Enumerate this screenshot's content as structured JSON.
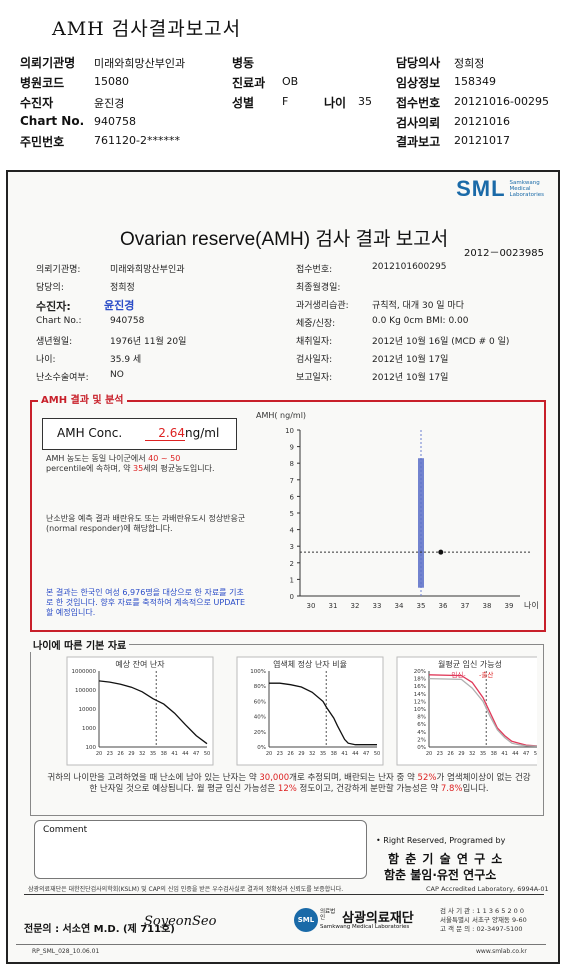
{
  "doc_title": "AMH 검사결과보고서",
  "header": {
    "labels": {
      "org": "의뢰기관명",
      "hosp_code": "병원코드",
      "patient": "수진자",
      "chart_no": "Chart No.",
      "rrn": "주민번호",
      "ward": "병동",
      "dept": "진료과",
      "sex": "성별",
      "age": "나이",
      "doctor": "담당의사",
      "clinical": "임상정보",
      "accession": "접수번호",
      "test_req": "검사의뢰",
      "result_rep": "결과보고"
    },
    "values": {
      "org": "미래와희망산부인과",
      "hosp_code": "15080",
      "patient": "윤진경",
      "chart_no": "940758",
      "rrn": "761120-2******",
      "ward": "",
      "dept": "OB",
      "sex": "F",
      "age": "35",
      "doctor": "정희정",
      "clinical": "158349",
      "accession": "20121016-00295",
      "test_req": "20121016",
      "result_rep": "20121017"
    }
  },
  "report": {
    "logo_text": "SML",
    "logo_sub": [
      "Samkwang",
      "Medical",
      "Laboratories"
    ],
    "title": "Ovarian reserve(AMH) 검사 결과 보고서",
    "doc_no": "2012－0023985",
    "left_info": [
      {
        "label": "의뢰기관명:",
        "value": "미래와희망산부인과"
      },
      {
        "label": "담당의:",
        "value": "정희정"
      },
      {
        "label": "수진자:",
        "value": "윤진경"
      },
      {
        "label": "Chart No.:",
        "value": "940758"
      },
      {
        "label": "생년월일:",
        "value": "1976년 11월 20일"
      },
      {
        "label": "나이:",
        "value": "35.9 세"
      },
      {
        "label": "난소수술여부:",
        "value": "NO"
      }
    ],
    "right_info": [
      {
        "label": "접수번호:",
        "value": "2012101600295"
      },
      {
        "label": "최종월경일:",
        "value": ""
      },
      {
        "label": "과거생리습관:",
        "value": "규칙적, 대개  30 일 마다"
      },
      {
        "label": "체중/신장:",
        "value": "0.0 Kg     0cm   BMI:     0.00"
      },
      {
        "label": "채취일자:",
        "value": "2012년 10월 16일  (MCD # 0 일)"
      },
      {
        "label": "검사일자:",
        "value": "2012년 10월 17일"
      },
      {
        "label": "보고일자:",
        "value": "2012년 10월 17일"
      }
    ],
    "amh_section_label": "AMH 결과 및 분석",
    "amh_conc_label": "AMH Conc.",
    "amh_value": "2.64",
    "amh_unit": "ng/ml",
    "note1": {
      "t1": "AMH 농도는 동일 나이군에서 ",
      "hl1": "40 ~ 50",
      "t2": "percentile에 속하며, 약 ",
      "hl2": "35",
      "t3": "세의 평균농도입니다."
    },
    "note2": "난소반응 예측 결과 배란유도 또는 과배란유도시 정상반응군 (normal responder)에 해당합니다.",
    "note3": "본 결과는 한국인 여성 6,976명을 대상으로 한 자료를 기초로 한 것입니다. 향후 자료를 축적하여 계속적으로 UPDATE할 예정입니다.",
    "age_section_label": "나이에 따른 기본 자료",
    "summary": {
      "t1": "귀하의 나이만을 고려하였을 때 난소에 남아 있는 난자는 약 ",
      "n1": "30,000",
      "t2": "개로 추정되며, 배란되는 난자 중 약 ",
      "n2": "52%",
      "t3": "가 염색체이상이 없는 건강한 난자일 것으로 예상됩니다. 월 평균 임신 가능성은 ",
      "n3": "12%",
      "t4": " 정도이고, 건강하게 분만할 가능성은 약 ",
      "n4": "7.8%",
      "t5": "입니다."
    },
    "comment_label": "Comment",
    "rights": "• Right Reserved, Programed by",
    "lab1": "함 춘 기 술 연 구 소",
    "lab2": "함춘 불임·유전 연구소",
    "cert": "삼광의료재단은 대한진단검사의학회(KSLM) 및 CAP의 신임 인증을 받은 우수검사실로 결과의 정확성과 신뢰도를 보증합니다.",
    "cap": "CAP  Accredited  Laboratory,  6994A-01",
    "specialist": "전문의 : 서소연 M.D. (제 711호)",
    "signature": "SoyeonSeo",
    "foundation": "삼광의료재단",
    "foundation_prefix": "의료법인",
    "foundation_en": "Samkwang Medical Laboratories",
    "address": [
      "검 사 기 관 : 1 1 3 6 5 2 0 0",
      "서울특별시 서초구 양재동 9-60",
      "고 객 문 의 : 02-3497-5100"
    ],
    "form_code": "RP_SML_028_10.06.01",
    "website": "www.smlab.co.kr"
  },
  "chart_data": [
    {
      "type": "scatter",
      "title": "",
      "ylabel": "AMH( ng/ml)",
      "xlabel": "나이",
      "x_ticks": [
        30,
        31,
        32,
        33,
        34,
        35,
        36,
        37,
        38,
        39
      ],
      "y_ticks": [
        0,
        1,
        2,
        3,
        4,
        5,
        6,
        7,
        8,
        9,
        10
      ],
      "xlim": [
        29.5,
        39.5
      ],
      "ylim": [
        0,
        10
      ],
      "range_bar": {
        "x": 35,
        "low": 0.5,
        "high": 8.3
      },
      "point": {
        "x": 35.9,
        "y": 2.64
      },
      "reference_line_y": 2.64
    },
    {
      "type": "line",
      "title": "예상 잔여 난자",
      "y_ticks": [
        "1000000",
        "100000",
        "10000",
        "1000",
        "100"
      ],
      "x_ticks": [
        20,
        23,
        26,
        29,
        32,
        35,
        38,
        41,
        44,
        47,
        50
      ],
      "y_scale": "log",
      "x": [
        20,
        23,
        26,
        29,
        32,
        35,
        38,
        41,
        44,
        47,
        50
      ],
      "y": [
        300000,
        260000,
        200000,
        140000,
        80000,
        35000,
        18000,
        6000,
        1500,
        400,
        150
      ],
      "marker_x": 35.9
    },
    {
      "type": "line",
      "title": "염색체 정상 난자 비율",
      "y_ticks": [
        "100%",
        "80%",
        "60%",
        "40%",
        "20%",
        "0%"
      ],
      "x_ticks": [
        20,
        23,
        26,
        29,
        32,
        35,
        38,
        41,
        44,
        47,
        50
      ],
      "x": [
        20,
        23,
        26,
        29,
        32,
        35,
        36,
        38,
        39,
        41,
        42,
        44,
        47,
        50
      ],
      "y": [
        84,
        84,
        82,
        79,
        72,
        60,
        52,
        38,
        28,
        10,
        5,
        3,
        3,
        3
      ],
      "marker_x": 35.9
    },
    {
      "type": "line",
      "title": "월평균 임신 가능성",
      "legend": [
        "임신",
        "출산"
      ],
      "y_ticks": [
        "20%",
        "18%",
        "16%",
        "14%",
        "12%",
        "10%",
        "8%",
        "6%",
        "4%",
        "2%",
        "0%"
      ],
      "x_ticks": [
        20,
        23,
        26,
        29,
        32,
        35,
        38,
        41,
        44,
        47,
        50
      ],
      "series": [
        {
          "name": "임신",
          "color": "#e03a5a",
          "x": [
            20,
            29,
            32,
            35,
            37,
            39,
            41,
            43,
            45,
            47,
            50
          ],
          "y": [
            19,
            18.8,
            17,
            13,
            9,
            5,
            3,
            1.5,
            1,
            0.5,
            0.3
          ]
        },
        {
          "name": "출산",
          "color": "#b0b0b0",
          "x": [
            20,
            29,
            32,
            35,
            37,
            39,
            41,
            43,
            45,
            47,
            50
          ],
          "y": [
            18,
            17.8,
            15.5,
            12,
            8,
            4.5,
            2.5,
            1,
            0.6,
            0.3,
            0.2
          ]
        }
      ],
      "marker_x": 35.9
    }
  ]
}
